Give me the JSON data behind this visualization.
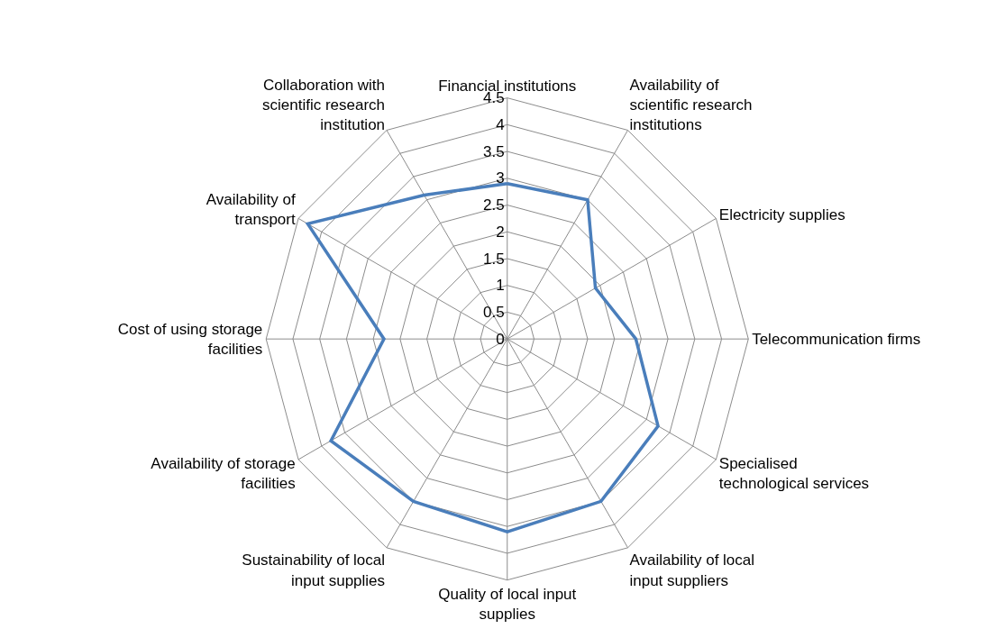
{
  "chart_data": {
    "type": "radar",
    "categories": [
      "Financial institutions",
      "Availability of scientific research institutions",
      "Electricity supplies",
      "Telecommunication firms",
      "Specialised technological services",
      "Availability of local input suppliers",
      "Quality of local input supplies",
      "Sustainability of local input supplies",
      "Availability of storage facilities",
      "Cost of using storage facilities",
      "Availability of transport",
      "Collaboration with scientific research institution"
    ],
    "series": [
      {
        "color": "#4a7ebb",
        "values": [
          2.9,
          3.0,
          1.9,
          2.4,
          3.25,
          3.5,
          3.6,
          3.5,
          3.8,
          2.3,
          4.3,
          3.1
        ]
      }
    ],
    "ylim": [
      0,
      4.5
    ],
    "yticks": [
      0,
      0.5,
      1,
      1.5,
      2,
      2.5,
      3,
      3.5,
      4,
      4.5
    ],
    "grid": true,
    "legend": false,
    "marker": "none",
    "line_style": "solid"
  }
}
